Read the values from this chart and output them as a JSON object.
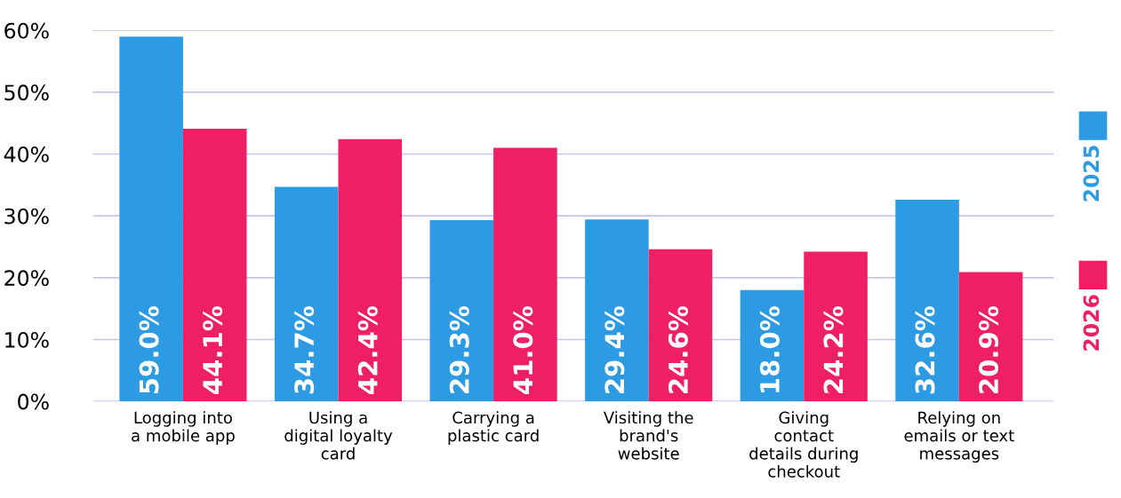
{
  "chart_data": {
    "type": "bar",
    "categories": [
      "Logging into\na mobile app",
      "Using a\ndigital loyalty\ncard",
      "Carrying a\nplastic card",
      "Visiting the\nbrand's\nwebsite",
      "Giving\ncontact\ndetails during\ncheckout",
      "Relying on\nemails or text\nmessages"
    ],
    "series": [
      {
        "name": "2025",
        "color": "#2d9be3",
        "values": [
          59.0,
          34.7,
          29.3,
          29.4,
          18.0,
          32.6
        ],
        "value_labels": [
          "59.0%",
          "34.7%",
          "29.3%",
          "29.4%",
          "18.0%",
          "32.6%"
        ]
      },
      {
        "name": "2026",
        "color": "#ee1f65",
        "values": [
          44.1,
          42.4,
          41.0,
          24.6,
          24.2,
          20.9
        ],
        "value_labels": [
          "44.1%",
          "42.4%",
          "41.0%",
          "24.6%",
          "24.2%",
          "20.9%"
        ]
      }
    ],
    "ylim": [
      0,
      60
    ],
    "yticks": [
      {
        "value": 0,
        "label": "0%"
      },
      {
        "value": 10,
        "label": "10%"
      },
      {
        "value": 20,
        "label": "20%"
      },
      {
        "value": 30,
        "label": "30%"
      },
      {
        "value": 40,
        "label": "40%"
      },
      {
        "value": 50,
        "label": "50%"
      },
      {
        "value": 60,
        "label": "60%"
      }
    ],
    "grid": "y",
    "legend": "right"
  }
}
